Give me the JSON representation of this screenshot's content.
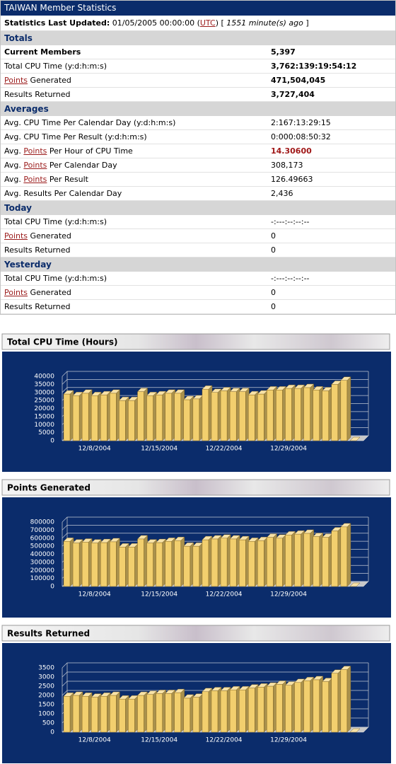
{
  "header": {
    "title": "TAIWAN Member Statistics"
  },
  "updated": {
    "label": "Statistics Last Updated:",
    "parts": [
      "01/05/2005 00:00:00 (",
      "UTC",
      ") [",
      "1551 minute(s) ago",
      "]"
    ]
  },
  "sections": [
    {
      "title": "Totals",
      "rows": [
        {
          "label": "Current Members",
          "value": "5,397"
        },
        {
          "label": "Total CPU Time (y:d:h:m:s)",
          "value": "3,762:139:19:54:12"
        },
        {
          "link": "Points",
          "suffix": " Generated",
          "value": "471,504,045"
        },
        {
          "label": "Results Returned",
          "value": "3,727,404"
        }
      ]
    },
    {
      "title": "Averages",
      "rows": [
        {
          "label": "Avg. CPU Time Per Calendar Day (y:d:h:m:s)",
          "value": "2:167:13:29:15"
        },
        {
          "label": "Avg. CPU Time Per Result (y:d:h:m:s)",
          "value": "0:000:08:50:32"
        },
        {
          "prefix": "Avg. ",
          "link": "Points",
          "suffix": " Per Hour of CPU Time",
          "value": "14.30600"
        },
        {
          "prefix": "Avg. ",
          "link": "Points",
          "suffix": " Per Calendar Day",
          "value": "308,173"
        },
        {
          "prefix": "Avg. ",
          "link": "Points",
          "suffix": " Per Result",
          "value": "126.49663"
        },
        {
          "label": "Avg. Results Per Calendar Day",
          "value": "2,436"
        }
      ]
    },
    {
      "title": "Today",
      "rows": [
        {
          "label": "Total CPU Time (y:d:h:m:s)",
          "value": "-:---:--:--:--"
        },
        {
          "link": "Points",
          "suffix": " Generated",
          "value": "0"
        },
        {
          "label": "Results Returned",
          "value": "0"
        }
      ]
    },
    {
      "title": "Yesterday",
      "rows": [
        {
          "label": "Total CPU Time (y:d:h:m:s)",
          "value": "-:---:--:--:--"
        },
        {
          "link": "Points",
          "suffix": " Generated",
          "value": "0"
        },
        {
          "label": "Results Returned",
          "value": "0"
        }
      ]
    }
  ],
  "chart_data": [
    {
      "type": "bar",
      "title": "Total CPU Time (Hours)",
      "color": "#f2cf6e",
      "categories": [
        null,
        null,
        null,
        "12/8/2004",
        null,
        null,
        null,
        null,
        null,
        null,
        "12/15/2004",
        null,
        null,
        null,
        null,
        null,
        null,
        "12/22/2004",
        null,
        null,
        null,
        null,
        null,
        null,
        "12/29/2004",
        null,
        null,
        null,
        null,
        null,
        null,
        null
      ],
      "values": [
        29000,
        28000,
        29500,
        28000,
        28500,
        29500,
        25000,
        25000,
        30500,
        28000,
        28500,
        29500,
        29500,
        25500,
        26000,
        32000,
        30000,
        31000,
        30500,
        30500,
        28500,
        29000,
        31500,
        31500,
        32500,
        32500,
        33000,
        31500,
        31000,
        35000,
        37500,
        0
      ],
      "ylim": [
        0,
        40000
      ],
      "yticks": [
        0,
        5000,
        10000,
        15000,
        20000,
        25000,
        30000,
        35000,
        40000
      ]
    },
    {
      "type": "bar",
      "title": "Points Generated",
      "color": "#f2cf6e",
      "categories": [
        null,
        null,
        null,
        "12/8/2004",
        null,
        null,
        null,
        null,
        null,
        null,
        "12/15/2004",
        null,
        null,
        null,
        null,
        null,
        null,
        "12/22/2004",
        null,
        null,
        null,
        null,
        null,
        null,
        "12/29/2004",
        null,
        null,
        null,
        null,
        null,
        null,
        null
      ],
      "values": [
        560000,
        540000,
        550000,
        540000,
        545000,
        555000,
        490000,
        490000,
        590000,
        540000,
        545000,
        560000,
        570000,
        500000,
        500000,
        580000,
        590000,
        600000,
        590000,
        580000,
        560000,
        570000,
        610000,
        600000,
        640000,
        650000,
        660000,
        620000,
        610000,
        690000,
        740000,
        0
      ],
      "ylim": [
        0,
        800000
      ],
      "yticks": [
        0,
        100000,
        200000,
        300000,
        400000,
        500000,
        600000,
        700000,
        800000
      ]
    },
    {
      "type": "bar",
      "title": "Results Returned",
      "color": "#f2cf6e",
      "categories": [
        null,
        null,
        null,
        "12/8/2004",
        null,
        null,
        null,
        null,
        null,
        null,
        "12/15/2004",
        null,
        null,
        null,
        null,
        null,
        null,
        "12/22/2004",
        null,
        null,
        null,
        null,
        null,
        null,
        "12/29/2004",
        null,
        null,
        null,
        null,
        null,
        null,
        null
      ],
      "values": [
        1950,
        2000,
        1950,
        1900,
        1950,
        2000,
        1800,
        1800,
        2000,
        2050,
        2100,
        2100,
        2150,
        1850,
        1900,
        2200,
        2250,
        2250,
        2300,
        2300,
        2400,
        2450,
        2500,
        2600,
        2550,
        2700,
        2800,
        2850,
        2750,
        3200,
        3400,
        0
      ],
      "ylim": [
        0,
        3500
      ],
      "yticks": [
        0,
        500,
        1000,
        1500,
        2000,
        2500,
        3000,
        3500
      ]
    }
  ]
}
